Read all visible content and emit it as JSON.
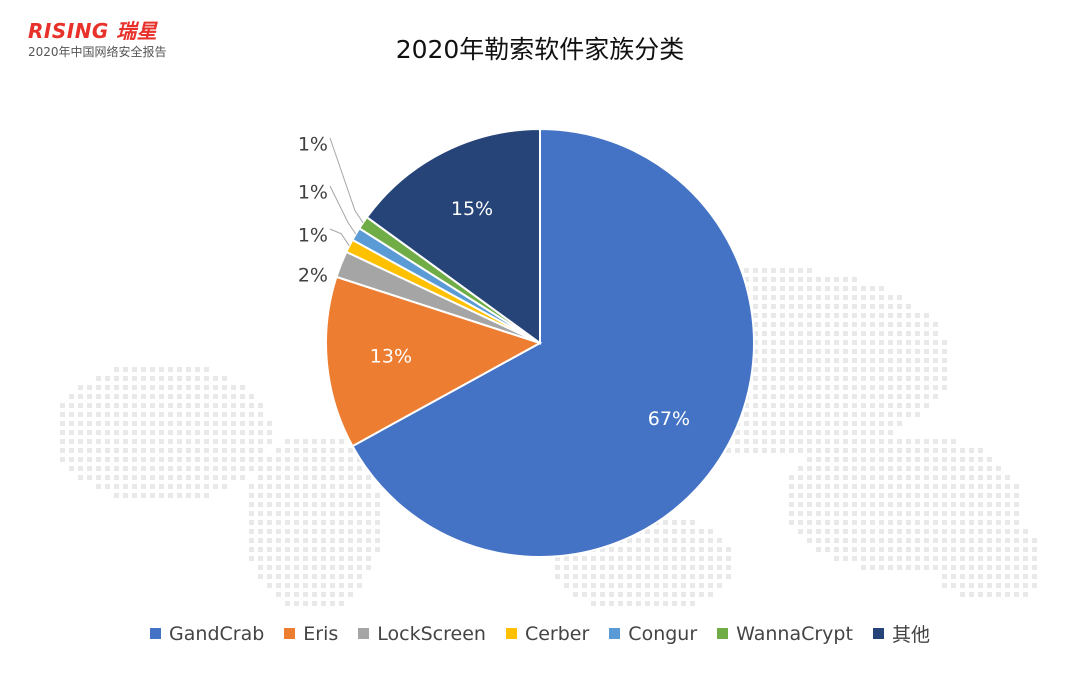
{
  "header": {
    "logo_text": "RISING 瑞星",
    "subtitle": "2020年中国网络安全报告"
  },
  "chart_data": {
    "type": "pie",
    "title": "2020年勒索软件家族分类",
    "slices": [
      {
        "name": "GandCrab",
        "value": 67,
        "label": "67%",
        "color": "#4472c4"
      },
      {
        "name": "Eris",
        "value": 13,
        "label": "13%",
        "color": "#ed7d31"
      },
      {
        "name": "LockScreen",
        "value": 2,
        "label": "2%",
        "color": "#a5a5a5"
      },
      {
        "name": "Cerber",
        "value": 1,
        "label": "1%",
        "color": "#ffc000"
      },
      {
        "name": "Congur",
        "value": 1,
        "label": "1%",
        "color": "#5b9bd5"
      },
      {
        "name": "WannaCrypt",
        "value": 1,
        "label": "1%",
        "color": "#70ad47"
      },
      {
        "name": "其他",
        "value": 15,
        "label": "15%",
        "color": "#264478"
      }
    ],
    "legend_position": "bottom"
  }
}
